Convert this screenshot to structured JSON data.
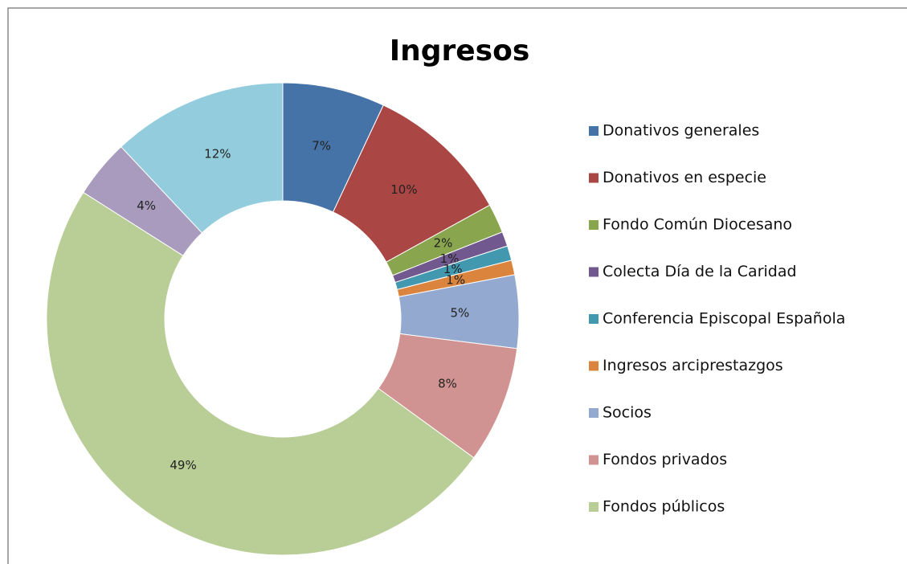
{
  "chart_data": {
    "type": "donut",
    "title": "Ingresos",
    "categories": [
      "Donativos generales",
      "Donativos en especie",
      "Fondo Común Diocesano",
      "Colecta Día de la Caridad",
      "Conferencia Episcopal Española",
      "Ingresos arciprestazgos",
      "Socios",
      "Fondos privados",
      "Fondos públicos",
      null,
      null
    ],
    "values": [
      7,
      10,
      2,
      1,
      1,
      1,
      5,
      8,
      49,
      4,
      12
    ],
    "value_labels": [
      "7%",
      "10%",
      "2%",
      "1%",
      "1%",
      "1%",
      "5%",
      "8%",
      "49%",
      "4%",
      "12%"
    ],
    "colors": [
      "#4572a7",
      "#aa4643",
      "#89a54e",
      "#71588f",
      "#4198af",
      "#db843d",
      "#93a9cf",
      "#d19392",
      "#b9cd96",
      "#a99bbd",
      "#93cddd"
    ],
    "legend": "right"
  }
}
